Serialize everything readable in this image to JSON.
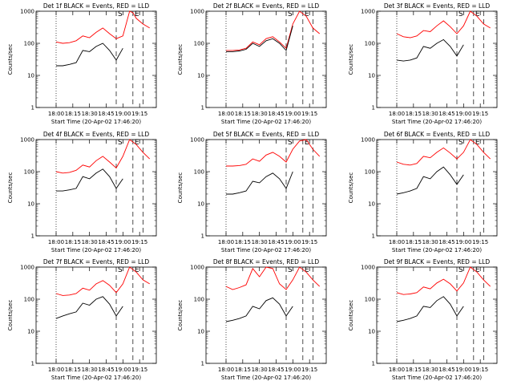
{
  "chart_data": [
    {
      "type": "line",
      "title": "Det 1f BLACK = Events, RED = LLD",
      "xlabel": "Start Time (20-Apr-02 17:46:20)",
      "ylabel": "Counts/sec",
      "yscale": "log",
      "ylim": [
        1,
        1000
      ],
      "xticks": [
        "18:00",
        "18:15",
        "18:30",
        "18:45",
        "19:00",
        "19:15"
      ],
      "yticks": [
        "1",
        "10",
        "100",
        "1000"
      ],
      "markers": [
        "S",
        "E"
      ],
      "series": [
        {
          "name": "LLD",
          "color": "#ff0000",
          "x": [
            18.0,
            18.1,
            18.2,
            18.3,
            18.4,
            18.5,
            18.6,
            18.7,
            18.8,
            18.9,
            19.0,
            19.1,
            19.15,
            19.2,
            19.3,
            19.4
          ],
          "y": [
            110,
            100,
            105,
            120,
            170,
            150,
            220,
            300,
            200,
            140,
            170,
            1000,
            900,
            600,
            400,
            300
          ]
        },
        {
          "name": "Events",
          "color": "#000000",
          "x": [
            18.0,
            18.1,
            18.2,
            18.3,
            18.4,
            18.5,
            18.6,
            18.7,
            18.8,
            18.9,
            19.0
          ],
          "y": [
            20,
            20,
            22,
            25,
            60,
            55,
            80,
            100,
            60,
            30,
            70
          ]
        }
      ]
    },
    {
      "type": "line",
      "title": "Det 2f BLACK = Events, RED = LLD",
      "xlabel": "Start Time (20-Apr-02 17:46:20)",
      "ylabel": "Counts/sec",
      "yscale": "log",
      "ylim": [
        1,
        1000
      ],
      "xticks": [
        "18:00",
        "18:15",
        "18:30",
        "18:45",
        "19:00",
        "19:15"
      ],
      "yticks": [
        "1",
        "10",
        "100",
        "1000"
      ],
      "markers": [
        "S",
        "E"
      ],
      "series": [
        {
          "name": "LLD",
          "color": "#ff0000",
          "x": [
            18.0,
            18.1,
            18.2,
            18.3,
            18.4,
            18.5,
            18.6,
            18.7,
            18.8,
            18.9,
            19.0,
            19.1,
            19.2,
            19.3,
            19.4
          ],
          "y": [
            60,
            60,
            62,
            70,
            110,
            90,
            140,
            160,
            110,
            70,
            400,
            1000,
            700,
            300,
            200
          ]
        },
        {
          "name": "Events",
          "color": "#000000",
          "x": [
            18.0,
            18.1,
            18.2,
            18.3,
            18.4,
            18.5,
            18.6,
            18.7,
            18.8,
            18.9,
            19.0
          ],
          "y": [
            55,
            55,
            58,
            65,
            100,
            80,
            120,
            140,
            100,
            60,
            350
          ]
        }
      ]
    },
    {
      "type": "line",
      "title": "Det 3f BLACK = Events, RED = LLD",
      "xlabel": "Start Time (20-Apr-02 17:46:20)",
      "ylabel": "Counts/sec",
      "yscale": "log",
      "ylim": [
        1,
        1000
      ],
      "xticks": [
        "18:00",
        "18:15",
        "18:30",
        "18:45",
        "19:00",
        "19:15"
      ],
      "yticks": [
        "1",
        "10",
        "100",
        "1000"
      ],
      "markers": [
        "S",
        "E"
      ],
      "series": [
        {
          "name": "LLD",
          "color": "#ff0000",
          "x": [
            18.0,
            18.1,
            18.2,
            18.3,
            18.4,
            18.5,
            18.6,
            18.7,
            18.8,
            18.9,
            19.0,
            19.1,
            19.2,
            19.3,
            19.4
          ],
          "y": [
            200,
            160,
            150,
            170,
            250,
            230,
            350,
            500,
            330,
            200,
            350,
            1000,
            700,
            400,
            300
          ]
        },
        {
          "name": "Events",
          "color": "#000000",
          "x": [
            18.0,
            18.1,
            18.2,
            18.3,
            18.4,
            18.5,
            18.6,
            18.7,
            18.8,
            18.9,
            19.0
          ],
          "y": [
            30,
            28,
            30,
            35,
            80,
            70,
            100,
            130,
            80,
            40,
            90
          ]
        }
      ]
    },
    {
      "type": "line",
      "title": "Det 4f BLACK = Events, RED = LLD",
      "xlabel": "Start Time (20-Apr-02 17:46:20)",
      "ylabel": "Counts/sec",
      "yscale": "log",
      "ylim": [
        1,
        1000
      ],
      "xticks": [
        "18:00",
        "18:15",
        "18:30",
        "18:45",
        "19:00",
        "19:15"
      ],
      "yticks": [
        "1",
        "10",
        "100",
        "1000"
      ],
      "markers": [
        "S",
        "E"
      ],
      "series": [
        {
          "name": "LLD",
          "color": "#ff0000",
          "x": [
            18.0,
            18.1,
            18.2,
            18.3,
            18.4,
            18.5,
            18.6,
            18.7,
            18.8,
            18.9,
            19.0,
            19.1,
            19.2,
            19.3,
            19.4
          ],
          "y": [
            100,
            90,
            95,
            110,
            160,
            140,
            220,
            300,
            200,
            130,
            300,
            1000,
            700,
            400,
            250
          ]
        },
        {
          "name": "Events",
          "color": "#000000",
          "x": [
            18.0,
            18.1,
            18.2,
            18.3,
            18.4,
            18.5,
            18.6,
            18.7,
            18.8,
            18.9,
            19.0
          ],
          "y": [
            25,
            25,
            27,
            30,
            70,
            60,
            90,
            120,
            70,
            30,
            60
          ]
        }
      ]
    },
    {
      "type": "line",
      "title": "Det 5f BLACK = Events, RED = LLD",
      "xlabel": "Start Time (20-Apr-02 17:46:20)",
      "ylabel": "Counts/sec",
      "yscale": "log",
      "ylim": [
        1,
        1000
      ],
      "xticks": [
        "18:00",
        "18:15",
        "18:30",
        "18:45",
        "19:00",
        "19:15"
      ],
      "yticks": [
        "1",
        "10",
        "100",
        "1000"
      ],
      "markers": [
        "S",
        "E"
      ],
      "series": [
        {
          "name": "LLD",
          "color": "#ff0000",
          "x": [
            18.0,
            18.1,
            18.2,
            18.3,
            18.4,
            18.5,
            18.6,
            18.7,
            18.8,
            18.9,
            19.0,
            19.1,
            19.2,
            19.3,
            19.4
          ],
          "y": [
            150,
            150,
            155,
            170,
            250,
            210,
            330,
            400,
            300,
            200,
            500,
            900,
            1000,
            500,
            300
          ]
        },
        {
          "name": "Events",
          "color": "#000000",
          "x": [
            18.0,
            18.1,
            18.2,
            18.3,
            18.4,
            18.5,
            18.6,
            18.7,
            18.8,
            18.9,
            19.0
          ],
          "y": [
            20,
            20,
            22,
            25,
            50,
            45,
            70,
            90,
            60,
            30,
            100
          ]
        }
      ]
    },
    {
      "type": "line",
      "title": "Det 6f BLACK = Events, RED = LLD",
      "xlabel": "Start Time (20-Apr-02 17:46:20)",
      "ylabel": "Counts/sec",
      "yscale": "log",
      "ylim": [
        1,
        1000
      ],
      "xticks": [
        "18:00",
        "18:15",
        "18:30",
        "18:45",
        "19:00",
        "19:15"
      ],
      "yticks": [
        "1",
        "10",
        "100",
        "1000"
      ],
      "markers": [
        "S",
        "E"
      ],
      "series": [
        {
          "name": "LLD",
          "color": "#ff0000",
          "x": [
            18.0,
            18.1,
            18.2,
            18.3,
            18.4,
            18.5,
            18.6,
            18.7,
            18.8,
            18.9,
            19.0,
            19.1,
            19.2,
            19.3,
            19.4
          ],
          "y": [
            200,
            170,
            160,
            180,
            300,
            270,
            400,
            550,
            380,
            250,
            400,
            1000,
            700,
            400,
            250
          ]
        },
        {
          "name": "Events",
          "color": "#000000",
          "x": [
            18.0,
            18.1,
            18.2,
            18.3,
            18.4,
            18.5,
            18.6,
            18.7,
            18.8,
            18.9,
            19.0
          ],
          "y": [
            20,
            22,
            25,
            30,
            70,
            60,
            100,
            140,
            80,
            40,
            80
          ]
        }
      ]
    },
    {
      "type": "line",
      "title": "Det 7f BLACK = Events, RED = LLD",
      "xlabel": "Start Time (20-Apr-02 17:46:20)",
      "ylabel": "Counts/sec",
      "yscale": "log",
      "ylim": [
        1,
        1000
      ],
      "xticks": [
        "18:00",
        "18:15",
        "18:30",
        "18:45",
        "19:00",
        "19:15"
      ],
      "yticks": [
        "1",
        "10",
        "100",
        "1000"
      ],
      "markers": [
        "S",
        "E"
      ],
      "series": [
        {
          "name": "LLD",
          "color": "#ff0000",
          "x": [
            18.0,
            18.1,
            18.2,
            18.3,
            18.4,
            18.5,
            18.6,
            18.7,
            18.8,
            18.9,
            19.0,
            19.1,
            19.2,
            19.3,
            19.4
          ],
          "y": [
            150,
            130,
            135,
            150,
            220,
            190,
            300,
            380,
            270,
            160,
            300,
            1000,
            700,
            400,
            300
          ]
        },
        {
          "name": "Events",
          "color": "#000000",
          "x": [
            18.0,
            18.1,
            18.2,
            18.3,
            18.4,
            18.5,
            18.6,
            18.7,
            18.8,
            18.9,
            19.0
          ],
          "y": [
            25,
            30,
            35,
            40,
            75,
            65,
            100,
            120,
            70,
            30,
            60
          ]
        }
      ]
    },
    {
      "type": "line",
      "title": "Det 8f BLACK = Events, RED = LLD",
      "xlabel": "Start Time (20-Apr-02 17:46:20)",
      "ylabel": "Counts/sec",
      "yscale": "log",
      "ylim": [
        1,
        1000
      ],
      "xticks": [
        "18:00",
        "18:15",
        "18:30",
        "18:45",
        "19:00",
        "19:15"
      ],
      "yticks": [
        "1",
        "10",
        "100",
        "1000"
      ],
      "markers": [
        "S",
        "E"
      ],
      "series": [
        {
          "name": "LLD",
          "color": "#ff0000",
          "x": [
            18.0,
            18.1,
            18.2,
            18.3,
            18.4,
            18.5,
            18.6,
            18.7,
            18.8,
            18.9,
            19.0,
            19.1,
            19.2,
            19.3,
            19.4
          ],
          "y": [
            250,
            200,
            230,
            280,
            900,
            500,
            1000,
            900,
            300,
            200,
            400,
            1000,
            700,
            400,
            250
          ]
        },
        {
          "name": "Events",
          "color": "#000000",
          "x": [
            18.0,
            18.1,
            18.2,
            18.3,
            18.4,
            18.5,
            18.6,
            18.7,
            18.8,
            18.9,
            19.0
          ],
          "y": [
            20,
            22,
            25,
            30,
            60,
            50,
            90,
            110,
            70,
            30,
            60
          ]
        }
      ]
    },
    {
      "type": "line",
      "title": "Det 9f BLACK = Events, RED = LLD",
      "xlabel": "Start Time (20-Apr-02 17:46:20)",
      "ylabel": "Counts/sec",
      "yscale": "log",
      "ylim": [
        1,
        1000
      ],
      "xticks": [
        "18:00",
        "18:15",
        "18:30",
        "18:45",
        "19:00",
        "19:15"
      ],
      "yticks": [
        "1",
        "10",
        "100",
        "1000"
      ],
      "markers": [
        "S",
        "E"
      ],
      "series": [
        {
          "name": "LLD",
          "color": "#ff0000",
          "x": [
            18.0,
            18.1,
            18.2,
            18.3,
            18.4,
            18.5,
            18.6,
            18.7,
            18.8,
            18.9,
            19.0,
            19.1,
            19.2,
            19.3,
            19.4
          ],
          "y": [
            160,
            140,
            145,
            160,
            240,
            210,
            320,
            420,
            300,
            180,
            320,
            1000,
            700,
            400,
            250
          ]
        },
        {
          "name": "Events",
          "color": "#000000",
          "x": [
            18.0,
            18.1,
            18.2,
            18.3,
            18.4,
            18.5,
            18.6,
            18.7,
            18.8,
            18.9,
            19.0
          ],
          "y": [
            20,
            22,
            25,
            30,
            60,
            55,
            90,
            120,
            70,
            30,
            60
          ]
        }
      ]
    }
  ]
}
